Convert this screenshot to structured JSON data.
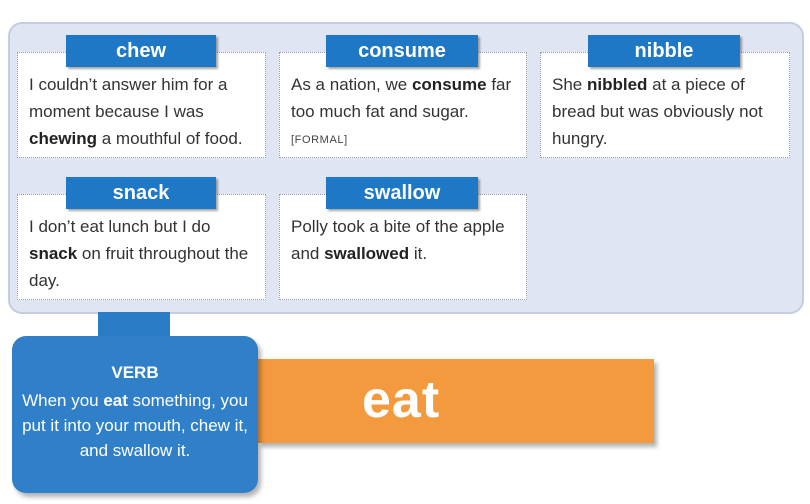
{
  "entries": [
    {
      "word": "chew",
      "parts": [
        {
          "text": "I couldn’t answer him for a moment because I was ",
          "bold": false
        },
        {
          "text": "chewing",
          "bold": true
        },
        {
          "text": " a mouthful of food.",
          "bold": false
        }
      ],
      "register": ""
    },
    {
      "word": "consume",
      "parts": [
        {
          "text": "As a nation, we ",
          "bold": false
        },
        {
          "text": "consume",
          "bold": true
        },
        {
          "text": " far too much fat and sugar.",
          "bold": false
        }
      ],
      "register": "[FORMAL]"
    },
    {
      "word": "nibble",
      "parts": [
        {
          "text": "She ",
          "bold": false
        },
        {
          "text": "nibbled",
          "bold": true
        },
        {
          "text": " at a piece of bread but was obviously not hungry.",
          "bold": false
        }
      ],
      "register": ""
    },
    {
      "word": "snack",
      "parts": [
        {
          "text": "I don’t eat lunch but I do ",
          "bold": false
        },
        {
          "text": "snack",
          "bold": true
        },
        {
          "text": " on fruit throughout the day.",
          "bold": false
        }
      ],
      "register": ""
    },
    {
      "word": "swallow",
      "parts": [
        {
          "text": "Polly took a bite of the apple and ",
          "bold": false
        },
        {
          "text": "swallowed",
          "bold": true
        },
        {
          "text": " it.",
          "bold": false
        }
      ],
      "register": ""
    }
  ],
  "verb_box": {
    "title": "VERB",
    "definition_parts": [
      {
        "text": "When you ",
        "bold": false
      },
      {
        "text": "eat",
        "bold": true
      },
      {
        "text": " something, you put it into your mouth, chew it, and swallow it.",
        "bold": false
      }
    ]
  },
  "headword": "eat",
  "colors": {
    "label_blue": "#1f78c6",
    "verb_box_blue": "#2f80c9",
    "panel_bg": "#dfe5f2",
    "headword_orange": "#f49a3e"
  }
}
